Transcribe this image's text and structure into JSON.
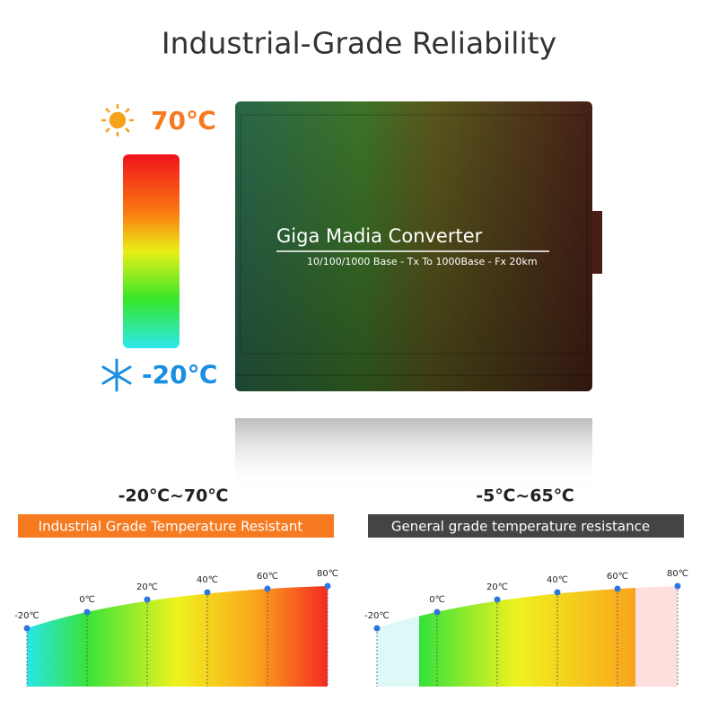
{
  "header": {
    "title": "Industrial-Grade Reliability"
  },
  "thermometer": {
    "high": "70℃",
    "low": "-20℃"
  },
  "device": {
    "name": "Giga Madia Converter",
    "spec": "10/100/1000 Base - Tx To 1000Base - Fx 20km"
  },
  "panels": [
    {
      "range": "-20℃~70℃",
      "banner": "Industrial Grade Temperature Resistant",
      "labels": [
        "-20℃",
        "0℃",
        "20℃",
        "40℃",
        "60℃",
        "80℃"
      ]
    },
    {
      "range": "-5℃~65℃",
      "banner": "General grade temperature resistance",
      "labels": [
        "-20℃",
        "0℃",
        "20℃",
        "40℃",
        "60℃",
        "80℃"
      ]
    }
  ]
}
